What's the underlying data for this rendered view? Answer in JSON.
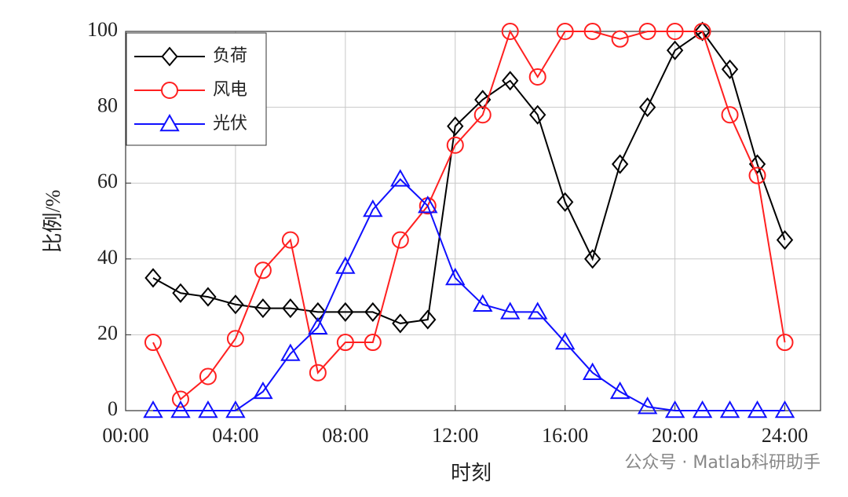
{
  "chart_data": {
    "type": "line",
    "x_label": "时刻",
    "y_label": "比例/%",
    "x": [
      1,
      2,
      3,
      4,
      5,
      6,
      7,
      8,
      9,
      10,
      11,
      12,
      13,
      14,
      15,
      16,
      17,
      18,
      19,
      20,
      21,
      22,
      23,
      24
    ],
    "series": [
      {
        "name": "负荷",
        "color": "#000000",
        "marker": "diamond",
        "values": [
          35,
          31,
          30,
          28,
          27,
          27,
          26,
          26,
          26,
          23,
          24,
          75,
          82,
          87,
          78,
          55,
          40,
          65,
          80,
          95,
          100,
          90,
          65,
          45
        ]
      },
      {
        "name": "风电",
        "color": "#ff2020",
        "marker": "circle",
        "values": [
          18,
          3,
          9,
          19,
          37,
          45,
          10,
          18,
          18,
          45,
          54,
          70,
          78,
          100,
          88,
          100,
          100,
          98,
          100,
          100,
          100,
          78,
          62,
          18
        ]
      },
      {
        "name": "光伏",
        "color": "#1010ff",
        "marker": "triangle",
        "values": [
          0,
          0,
          0,
          0,
          5,
          15,
          22,
          38,
          53,
          61,
          54,
          35,
          28,
          26,
          26,
          18,
          10,
          5,
          1,
          0,
          0,
          0,
          0,
          0
        ]
      }
    ],
    "xlim": [
      0,
      25.3
    ],
    "ylim": [
      0,
      100
    ],
    "xticks": [
      {
        "value": 0,
        "label": "00:00"
      },
      {
        "value": 4,
        "label": "04:00"
      },
      {
        "value": 8,
        "label": "08:00"
      },
      {
        "value": 12,
        "label": "12:00"
      },
      {
        "value": 16,
        "label": "16:00"
      },
      {
        "value": 20,
        "label": "20:00"
      },
      {
        "value": 24,
        "label": "24:00"
      }
    ],
    "yticks": [
      0,
      20,
      40,
      60,
      80,
      100
    ],
    "grid": true,
    "legend": "upper-left",
    "watermark": "公众号 · Matlab科研助手"
  }
}
